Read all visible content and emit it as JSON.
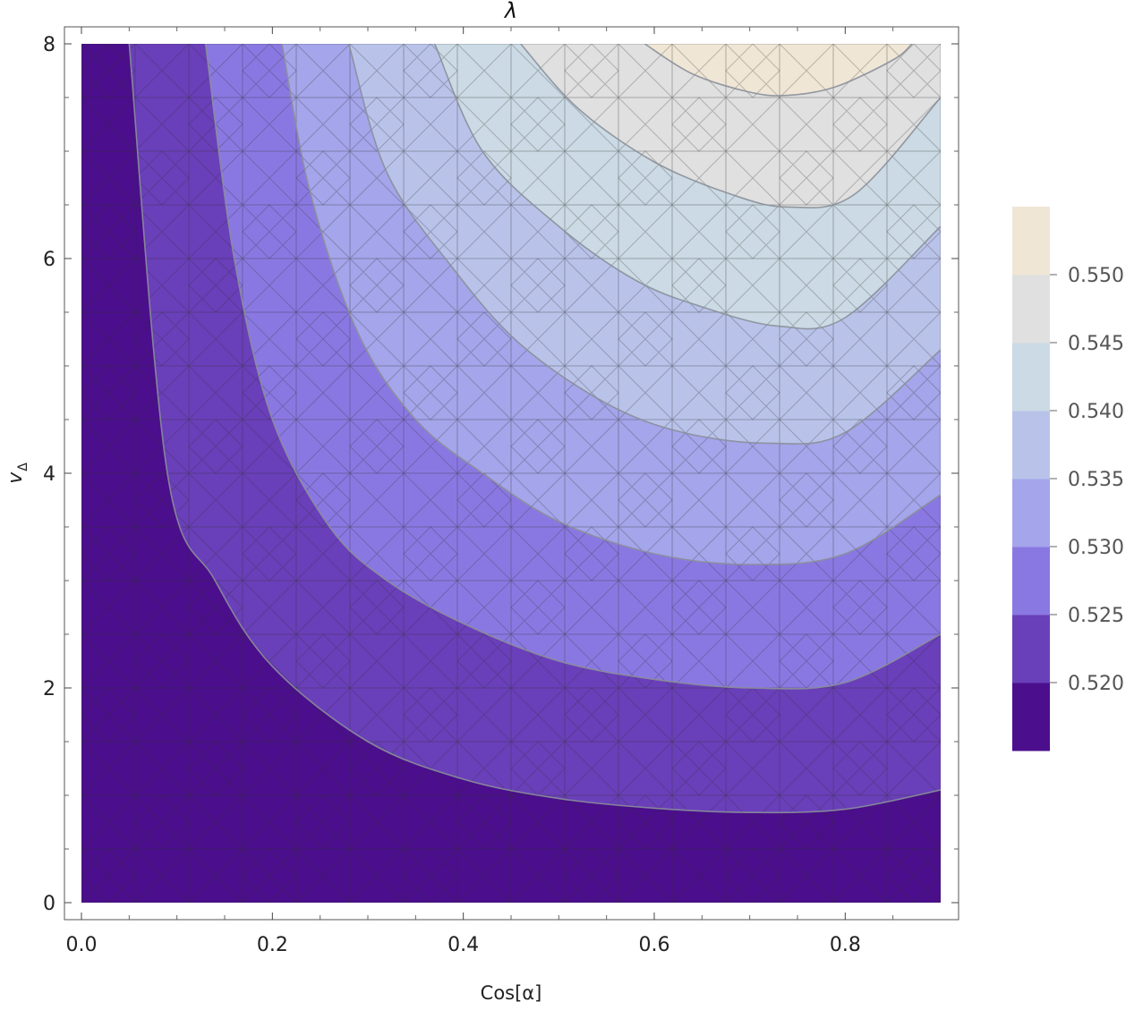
{
  "chart_data": {
    "type": "contour",
    "title": "λ",
    "xlabel": "Cos[α]",
    "ylabel": "v",
    "ylabel_subscript": "Δ",
    "xlim": [
      0.0,
      0.9
    ],
    "ylim": [
      0,
      8
    ],
    "x_ticks": [
      "0.0",
      "0.2",
      "0.4",
      "0.6",
      "0.8"
    ],
    "x_tick_values": [
      0.0,
      0.2,
      0.4,
      0.6,
      0.8
    ],
    "y_ticks": [
      "0",
      "2",
      "4",
      "6",
      "8"
    ],
    "y_tick_values": [
      0,
      2,
      4,
      6,
      8
    ],
    "legend": {
      "placement": "right",
      "labels": [
        "0.520",
        "0.525",
        "0.530",
        "0.535",
        "0.540",
        "0.545",
        "0.550"
      ],
      "levels": [
        0.52,
        0.525,
        0.53,
        0.535,
        0.54,
        0.545,
        0.55
      ],
      "colors": [
        "#4b0e8c",
        "#6a3fba",
        "#8a78e2",
        "#a4a5ea",
        "#b9c3ea",
        "#cbdae4",
        "#dfe0df",
        "#f0e6d6"
      ]
    },
    "contours": [
      {
        "level": 0.52,
        "points": [
          [
            0.05,
            8
          ],
          [
            0.09,
            4
          ],
          [
            0.14,
            3
          ],
          [
            0.2,
            2.2
          ],
          [
            0.3,
            1.5
          ],
          [
            0.4,
            1.15
          ],
          [
            0.5,
            0.97
          ],
          [
            0.6,
            0.88
          ],
          [
            0.7,
            0.84
          ],
          [
            0.8,
            0.87
          ],
          [
            0.9,
            1.05
          ]
        ]
      },
      {
        "level": 0.525,
        "points": [
          [
            0.13,
            8
          ],
          [
            0.16,
            6
          ],
          [
            0.2,
            4.5
          ],
          [
            0.26,
            3.5
          ],
          [
            0.32,
            3.0
          ],
          [
            0.4,
            2.6
          ],
          [
            0.5,
            2.25
          ],
          [
            0.6,
            2.08
          ],
          [
            0.7,
            2.0
          ],
          [
            0.8,
            2.05
          ],
          [
            0.9,
            2.5
          ]
        ]
      },
      {
        "level": 0.53,
        "points": [
          [
            0.21,
            8
          ],
          [
            0.24,
            6.6
          ],
          [
            0.29,
            5.3
          ],
          [
            0.35,
            4.5
          ],
          [
            0.42,
            4.0
          ],
          [
            0.5,
            3.55
          ],
          [
            0.6,
            3.25
          ],
          [
            0.7,
            3.15
          ],
          [
            0.8,
            3.25
          ],
          [
            0.9,
            3.8
          ]
        ]
      },
      {
        "level": 0.535,
        "points": [
          [
            0.28,
            8
          ],
          [
            0.32,
            6.8
          ],
          [
            0.39,
            5.9
          ],
          [
            0.46,
            5.2
          ],
          [
            0.55,
            4.65
          ],
          [
            0.63,
            4.38
          ],
          [
            0.72,
            4.28
          ],
          [
            0.8,
            4.38
          ],
          [
            0.9,
            5.15
          ]
        ]
      },
      {
        "level": 0.54,
        "points": [
          [
            0.37,
            8
          ],
          [
            0.42,
            7.0
          ],
          [
            0.5,
            6.3
          ],
          [
            0.58,
            5.8
          ],
          [
            0.65,
            5.55
          ],
          [
            0.73,
            5.37
          ],
          [
            0.8,
            5.45
          ],
          [
            0.9,
            6.3
          ]
        ]
      },
      {
        "level": 0.545,
        "points": [
          [
            0.46,
            8
          ],
          [
            0.52,
            7.4
          ],
          [
            0.6,
            6.9
          ],
          [
            0.68,
            6.6
          ],
          [
            0.74,
            6.48
          ],
          [
            0.81,
            6.6
          ],
          [
            0.9,
            7.5
          ]
        ]
      },
      {
        "level": 0.55,
        "points": [
          [
            0.59,
            8
          ],
          [
            0.64,
            7.72
          ],
          [
            0.7,
            7.55
          ],
          [
            0.74,
            7.52
          ],
          [
            0.79,
            7.6
          ],
          [
            0.85,
            7.85
          ],
          [
            0.87,
            8
          ]
        ]
      }
    ]
  }
}
